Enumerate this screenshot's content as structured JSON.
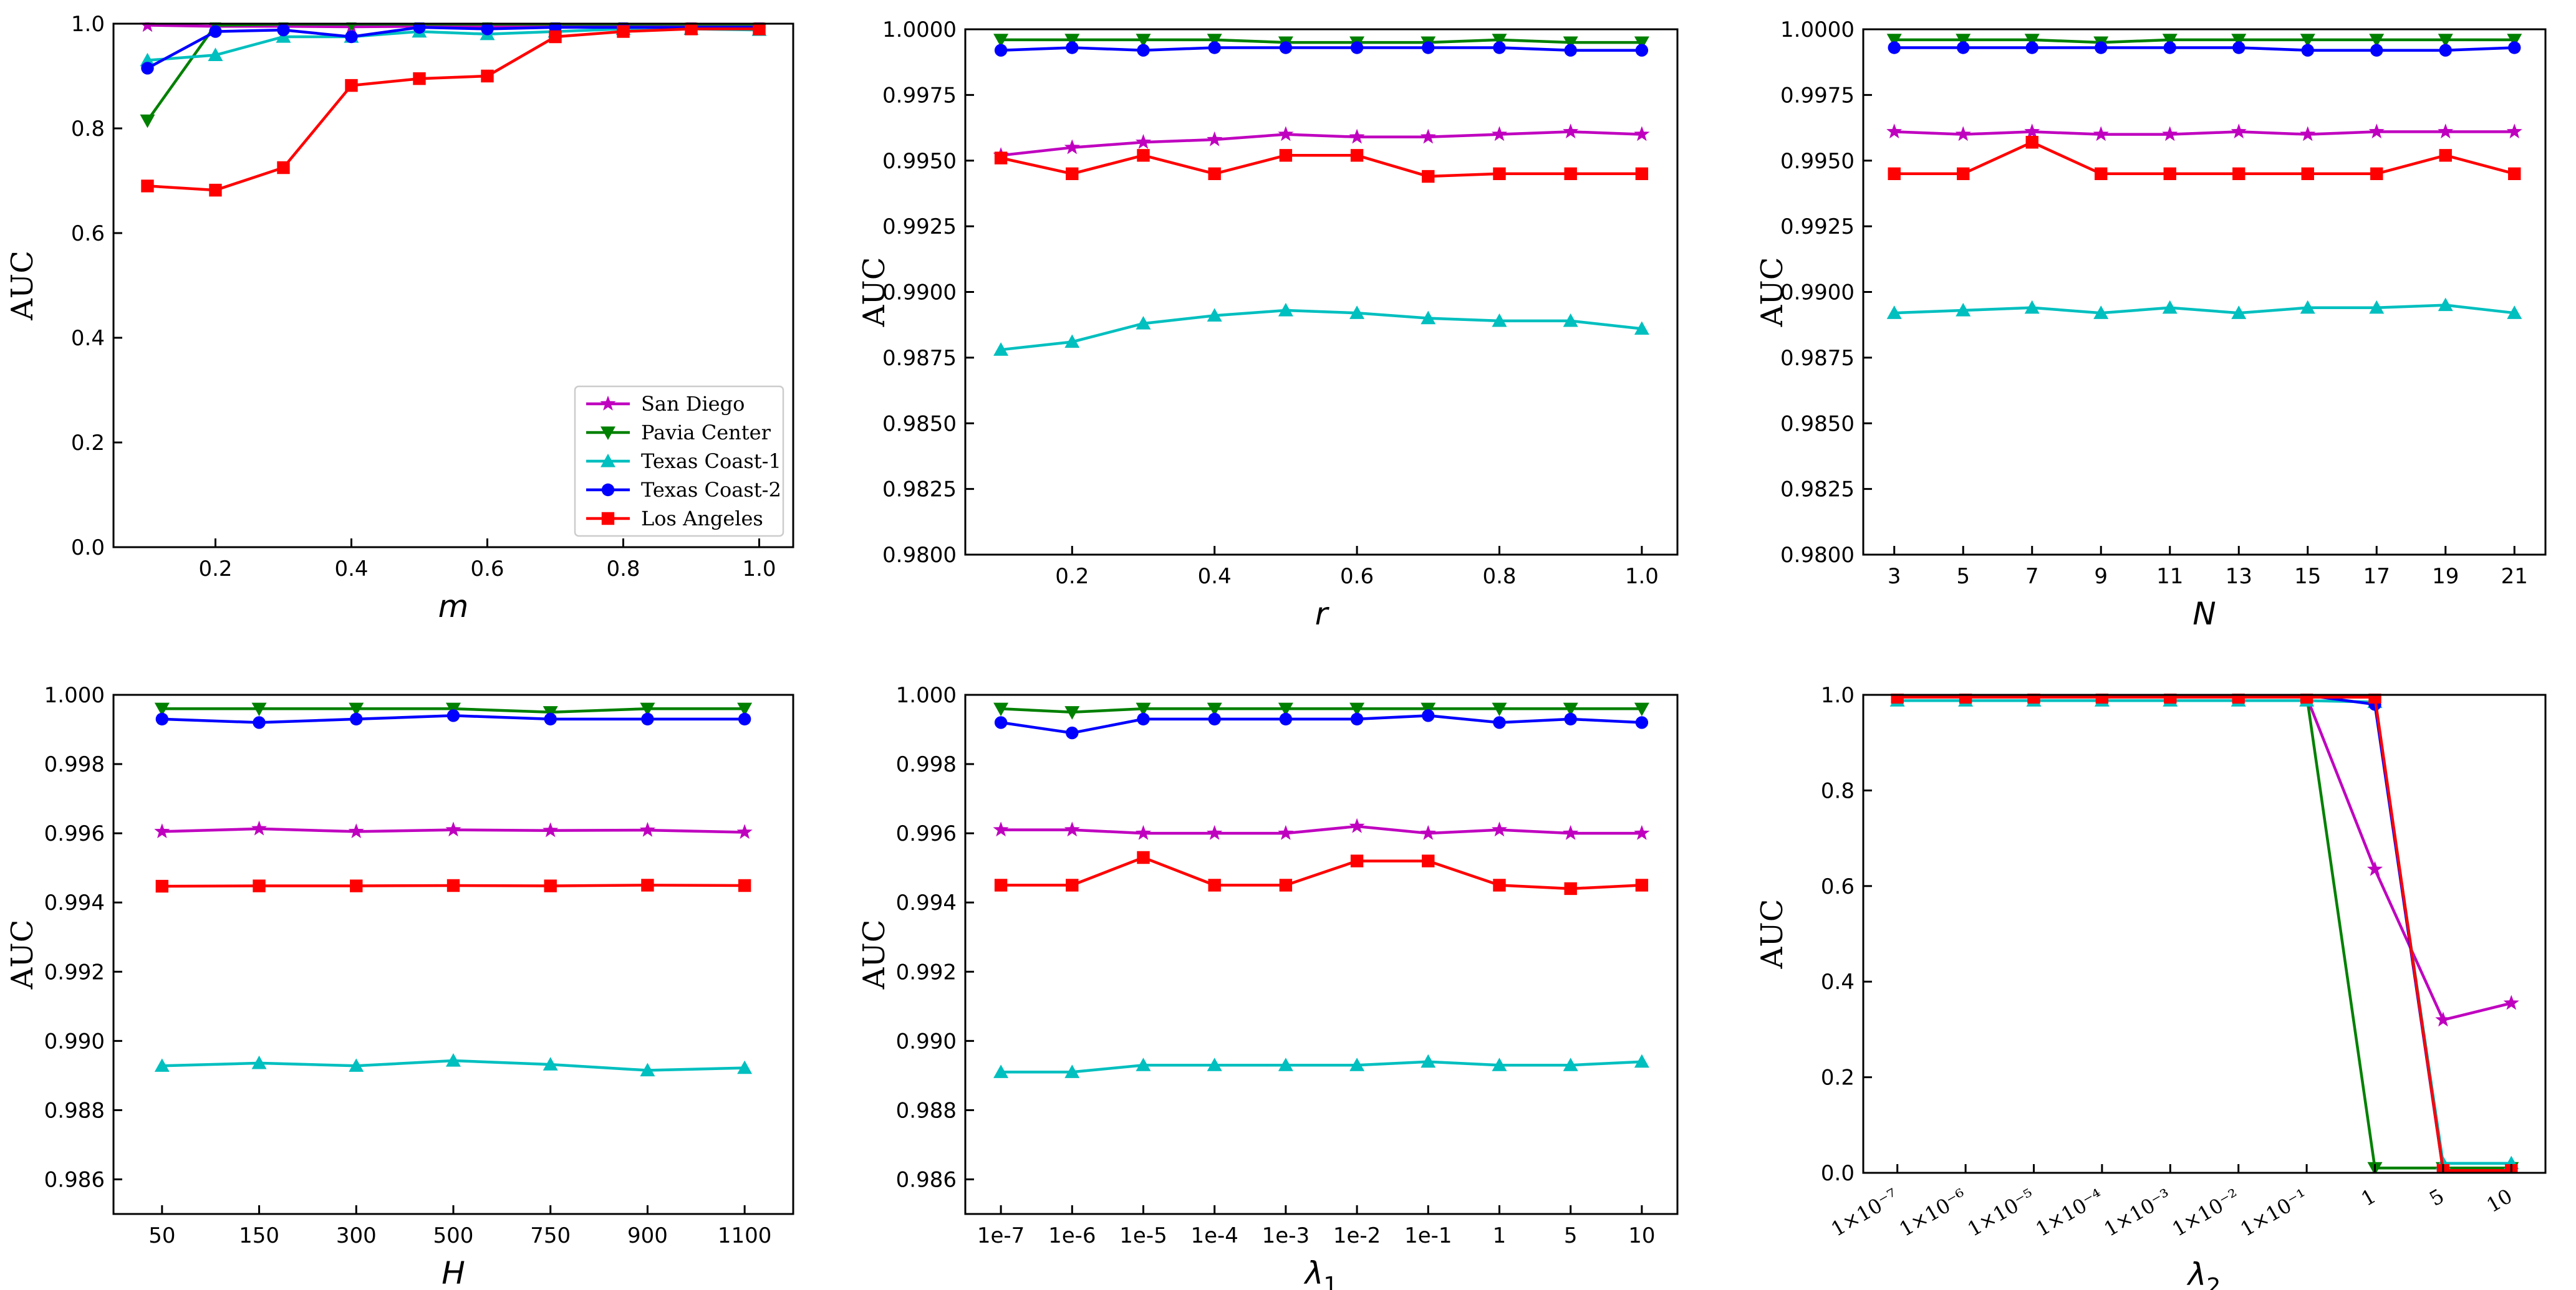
{
  "series_colors": {
    "San Diego": "#bf00bf",
    "Pavia Center": "#008000",
    "Texas Coast-1": "#00bfbf",
    "Texas Coast-2": "#0000ff",
    "Los Angeles": "#ff0000"
  },
  "series_markers": {
    "San Diego": "star",
    "Pavia Center": "triangle-down",
    "Texas Coast-1": "triangle-up",
    "Texas Coast-2": "circle",
    "Los Angeles": "square"
  },
  "legend": {
    "entries": [
      "San Diego",
      "Pavia Center",
      "Texas Coast-1",
      "Texas Coast-2",
      "Los Angeles"
    ],
    "placement": "lower-right of first panel"
  },
  "chart_data": [
    {
      "id": "m",
      "type": "line",
      "ylabel": "AUC",
      "xlabel": "m",
      "xaxis": "numeric",
      "xlim": [
        0.05,
        1.05
      ],
      "xticks": [
        0.2,
        0.4,
        0.6,
        0.8,
        1.0
      ],
      "xtick_labels": [
        "0.2",
        "0.4",
        "0.6",
        "0.8",
        "1.0"
      ],
      "ylim": [
        0,
        1.0
      ],
      "yticks": [
        0,
        0.2,
        0.4,
        0.6,
        0.8,
        1.0
      ],
      "ytick_labels": [
        "0.0",
        "0.2",
        "0.4",
        "0.6",
        "0.8",
        "1.0"
      ],
      "x": [
        0.1,
        0.2,
        0.3,
        0.4,
        0.5,
        0.6,
        0.7,
        0.8,
        0.9,
        1.0
      ],
      "series": [
        {
          "name": "San Diego",
          "values": [
            0.997,
            0.995,
            0.995,
            0.994,
            0.995,
            0.994,
            0.994,
            0.995,
            0.995,
            0.995
          ]
        },
        {
          "name": "Pavia Center",
          "values": [
            0.815,
            0.997,
            0.999,
            0.999,
            0.999,
            0.999,
            0.999,
            0.999,
            0.999,
            0.999
          ]
        },
        {
          "name": "Texas Coast-1",
          "values": [
            0.93,
            0.94,
            0.975,
            0.975,
            0.985,
            0.98,
            0.985,
            0.99,
            0.99,
            0.988
          ]
        },
        {
          "name": "Texas Coast-2",
          "values": [
            0.915,
            0.985,
            0.988,
            0.975,
            0.993,
            0.99,
            0.993,
            0.993,
            0.993,
            0.993
          ]
        },
        {
          "name": "Los Angeles",
          "values": [
            0.69,
            0.682,
            0.725,
            0.882,
            0.895,
            0.9,
            0.975,
            0.985,
            0.99,
            0.99
          ]
        }
      ]
    },
    {
      "id": "r",
      "type": "line",
      "ylabel": "AUC",
      "xlabel": "r",
      "xaxis": "numeric",
      "xlim": [
        0.05,
        1.05
      ],
      "xticks": [
        0.2,
        0.4,
        0.6,
        0.8,
        1.0
      ],
      "xtick_labels": [
        "0.2",
        "0.4",
        "0.6",
        "0.8",
        "1.0"
      ],
      "ylim": [
        0.98,
        1.0
      ],
      "yticks": [
        0.98,
        0.9825,
        0.985,
        0.9875,
        0.99,
        0.9925,
        0.995,
        0.9975,
        1.0
      ],
      "ytick_labels": [
        "0.9800",
        "0.9825",
        "0.9850",
        "0.9875",
        "0.9900",
        "0.9925",
        "0.9950",
        "0.9975",
        "1.0000"
      ],
      "x": [
        0.1,
        0.2,
        0.3,
        0.4,
        0.5,
        0.6,
        0.7,
        0.8,
        0.9,
        1.0
      ],
      "series": [
        {
          "name": "San Diego",
          "values": [
            0.9952,
            0.9955,
            0.9957,
            0.9958,
            0.996,
            0.9959,
            0.9959,
            0.996,
            0.9961,
            0.996
          ]
        },
        {
          "name": "Pavia Center",
          "values": [
            0.9996,
            0.9996,
            0.9996,
            0.9996,
            0.9995,
            0.9995,
            0.9995,
            0.9996,
            0.9995,
            0.9995
          ]
        },
        {
          "name": "Texas Coast-1",
          "values": [
            0.9878,
            0.9881,
            0.9888,
            0.9891,
            0.9893,
            0.9892,
            0.989,
            0.9889,
            0.9889,
            0.9886
          ]
        },
        {
          "name": "Texas Coast-2",
          "values": [
            0.9992,
            0.9993,
            0.9992,
            0.9993,
            0.9993,
            0.9993,
            0.9993,
            0.9993,
            0.9992,
            0.9992
          ]
        },
        {
          "name": "Los Angeles",
          "values": [
            0.9951,
            0.9945,
            0.9952,
            0.9945,
            0.9952,
            0.9952,
            0.9944,
            0.9945,
            0.9945,
            0.9945
          ]
        }
      ]
    },
    {
      "id": "N",
      "type": "line",
      "ylabel": "AUC",
      "xlabel": "N",
      "xaxis": "numeric",
      "xlim": [
        2.1,
        21.9
      ],
      "xticks": [
        3,
        5,
        7,
        9,
        11,
        13,
        15,
        17,
        19,
        21
      ],
      "xtick_labels": [
        "3",
        "5",
        "7",
        "9",
        "11",
        "13",
        "15",
        "17",
        "19",
        "21"
      ],
      "ylim": [
        0.98,
        1.0
      ],
      "yticks": [
        0.98,
        0.9825,
        0.985,
        0.9875,
        0.99,
        0.9925,
        0.995,
        0.9975,
        1.0
      ],
      "ytick_labels": [
        "0.9800",
        "0.9825",
        "0.9850",
        "0.9875",
        "0.9900",
        "0.9925",
        "0.9950",
        "0.9975",
        "1.0000"
      ],
      "x": [
        3,
        5,
        7,
        9,
        11,
        13,
        15,
        17,
        19,
        21
      ],
      "series": [
        {
          "name": "San Diego",
          "values": [
            0.9961,
            0.996,
            0.9961,
            0.996,
            0.996,
            0.9961,
            0.996,
            0.9961,
            0.9961,
            0.9961
          ]
        },
        {
          "name": "Pavia Center",
          "values": [
            0.9996,
            0.9996,
            0.9996,
            0.9995,
            0.9996,
            0.9996,
            0.9996,
            0.9996,
            0.9996,
            0.9996
          ]
        },
        {
          "name": "Texas Coast-1",
          "values": [
            0.9892,
            0.9893,
            0.9894,
            0.9892,
            0.9894,
            0.9892,
            0.9894,
            0.9894,
            0.9895,
            0.9892
          ]
        },
        {
          "name": "Texas Coast-2",
          "values": [
            0.9993,
            0.9993,
            0.9993,
            0.9993,
            0.9993,
            0.9993,
            0.9992,
            0.9992,
            0.9992,
            0.9993
          ]
        },
        {
          "name": "Los Angeles",
          "values": [
            0.9945,
            0.9945,
            0.9957,
            0.9945,
            0.9945,
            0.9945,
            0.9945,
            0.9945,
            0.9952,
            0.9945
          ]
        }
      ]
    },
    {
      "id": "H",
      "type": "line",
      "ylabel": "AUC",
      "xlabel": "H",
      "xaxis": "categorical",
      "categories": [
        "50",
        "150",
        "300",
        "500",
        "750",
        "900",
        "1100"
      ],
      "ylim": [
        0.985,
        1.0
      ],
      "yticks": [
        0.986,
        0.988,
        0.99,
        0.992,
        0.994,
        0.996,
        0.998,
        1.0
      ],
      "ytick_labels": [
        "0.986",
        "0.988",
        "0.990",
        "0.992",
        "0.994",
        "0.996",
        "0.998",
        "1.000"
      ],
      "series": [
        {
          "name": "San Diego",
          "values": [
            0.99605,
            0.99613,
            0.99605,
            0.9961,
            0.99608,
            0.99609,
            0.99603
          ]
        },
        {
          "name": "Pavia Center",
          "values": [
            0.9996,
            0.9996,
            0.9996,
            0.9996,
            0.9995,
            0.9996,
            0.9996
          ]
        },
        {
          "name": "Texas Coast-1",
          "values": [
            0.98928,
            0.98936,
            0.98928,
            0.98943,
            0.98932,
            0.98915,
            0.98922
          ]
        },
        {
          "name": "Texas Coast-2",
          "values": [
            0.9993,
            0.9992,
            0.9993,
            0.9994,
            0.9993,
            0.9993,
            0.9993
          ]
        },
        {
          "name": "Los Angeles",
          "values": [
            0.99447,
            0.99448,
            0.99448,
            0.99449,
            0.99448,
            0.9945,
            0.99449
          ]
        }
      ]
    },
    {
      "id": "lambda1",
      "type": "line",
      "ylabel": "AUC",
      "xlabel": "λ",
      "xlabel_sub": "1",
      "xaxis": "categorical",
      "categories": [
        "1e-7",
        "1e-6",
        "1e-5",
        "1e-4",
        "1e-3",
        "1e-2",
        "1e-1",
        "1",
        "5",
        "10"
      ],
      "ylim": [
        0.985,
        1.0
      ],
      "yticks": [
        0.986,
        0.988,
        0.99,
        0.992,
        0.994,
        0.996,
        0.998,
        1.0
      ],
      "ytick_labels": [
        "0.986",
        "0.988",
        "0.990",
        "0.992",
        "0.994",
        "0.996",
        "0.998",
        "1.000"
      ],
      "series": [
        {
          "name": "San Diego",
          "values": [
            0.9961,
            0.9961,
            0.996,
            0.996,
            0.996,
            0.9962,
            0.996,
            0.9961,
            0.996,
            0.996
          ]
        },
        {
          "name": "Pavia Center",
          "values": [
            0.9996,
            0.9995,
            0.9996,
            0.9996,
            0.9996,
            0.9996,
            0.9996,
            0.9996,
            0.9996,
            0.9996
          ]
        },
        {
          "name": "Texas Coast-1",
          "values": [
            0.9891,
            0.9891,
            0.9893,
            0.9893,
            0.9893,
            0.9893,
            0.9894,
            0.9893,
            0.9893,
            0.9894
          ]
        },
        {
          "name": "Texas Coast-2",
          "values": [
            0.9992,
            0.9989,
            0.9993,
            0.9993,
            0.9993,
            0.9993,
            0.9994,
            0.9992,
            0.9993,
            0.9992
          ]
        },
        {
          "name": "Los Angeles",
          "values": [
            0.9945,
            0.9945,
            0.9953,
            0.9945,
            0.9945,
            0.9952,
            0.9952,
            0.9945,
            0.9944,
            0.9945
          ]
        }
      ]
    },
    {
      "id": "lambda2",
      "type": "line",
      "ylabel": "AUC",
      "xlabel": "λ",
      "xlabel_sub": "2",
      "xaxis": "categorical",
      "categories": [
        "1×10⁻⁷",
        "1×10⁻⁶",
        "1×10⁻⁵",
        "1×10⁻⁴",
        "1×10⁻³",
        "1×10⁻²",
        "1×10⁻¹",
        "1",
        "5",
        "10"
      ],
      "ylim": [
        0,
        1.0
      ],
      "yticks": [
        0,
        0.2,
        0.4,
        0.6,
        0.8,
        1.0
      ],
      "ytick_labels": [
        "0.0",
        "0.2",
        "0.4",
        "0.6",
        "0.8",
        "1.0"
      ],
      "series": [
        {
          "name": "San Diego",
          "values": [
            0.996,
            0.996,
            0.996,
            0.996,
            0.996,
            0.996,
            0.996,
            0.635,
            0.32,
            0.355
          ]
        },
        {
          "name": "Pavia Center",
          "values": [
            0.999,
            0.999,
            0.999,
            0.999,
            0.999,
            0.999,
            0.999,
            0.01,
            0.01,
            0.01
          ]
        },
        {
          "name": "Texas Coast-1",
          "values": [
            0.988,
            0.988,
            0.988,
            0.988,
            0.988,
            0.988,
            0.988,
            0.985,
            0.02,
            0.02
          ]
        },
        {
          "name": "Texas Coast-2",
          "values": [
            0.999,
            0.999,
            0.999,
            0.999,
            0.999,
            0.999,
            0.999,
            0.98,
            0.005,
            0.005
          ]
        },
        {
          "name": "Los Angeles",
          "values": [
            0.995,
            0.995,
            0.995,
            0.995,
            0.995,
            0.995,
            0.995,
            0.995,
            0.005,
            0.005
          ]
        }
      ]
    }
  ]
}
